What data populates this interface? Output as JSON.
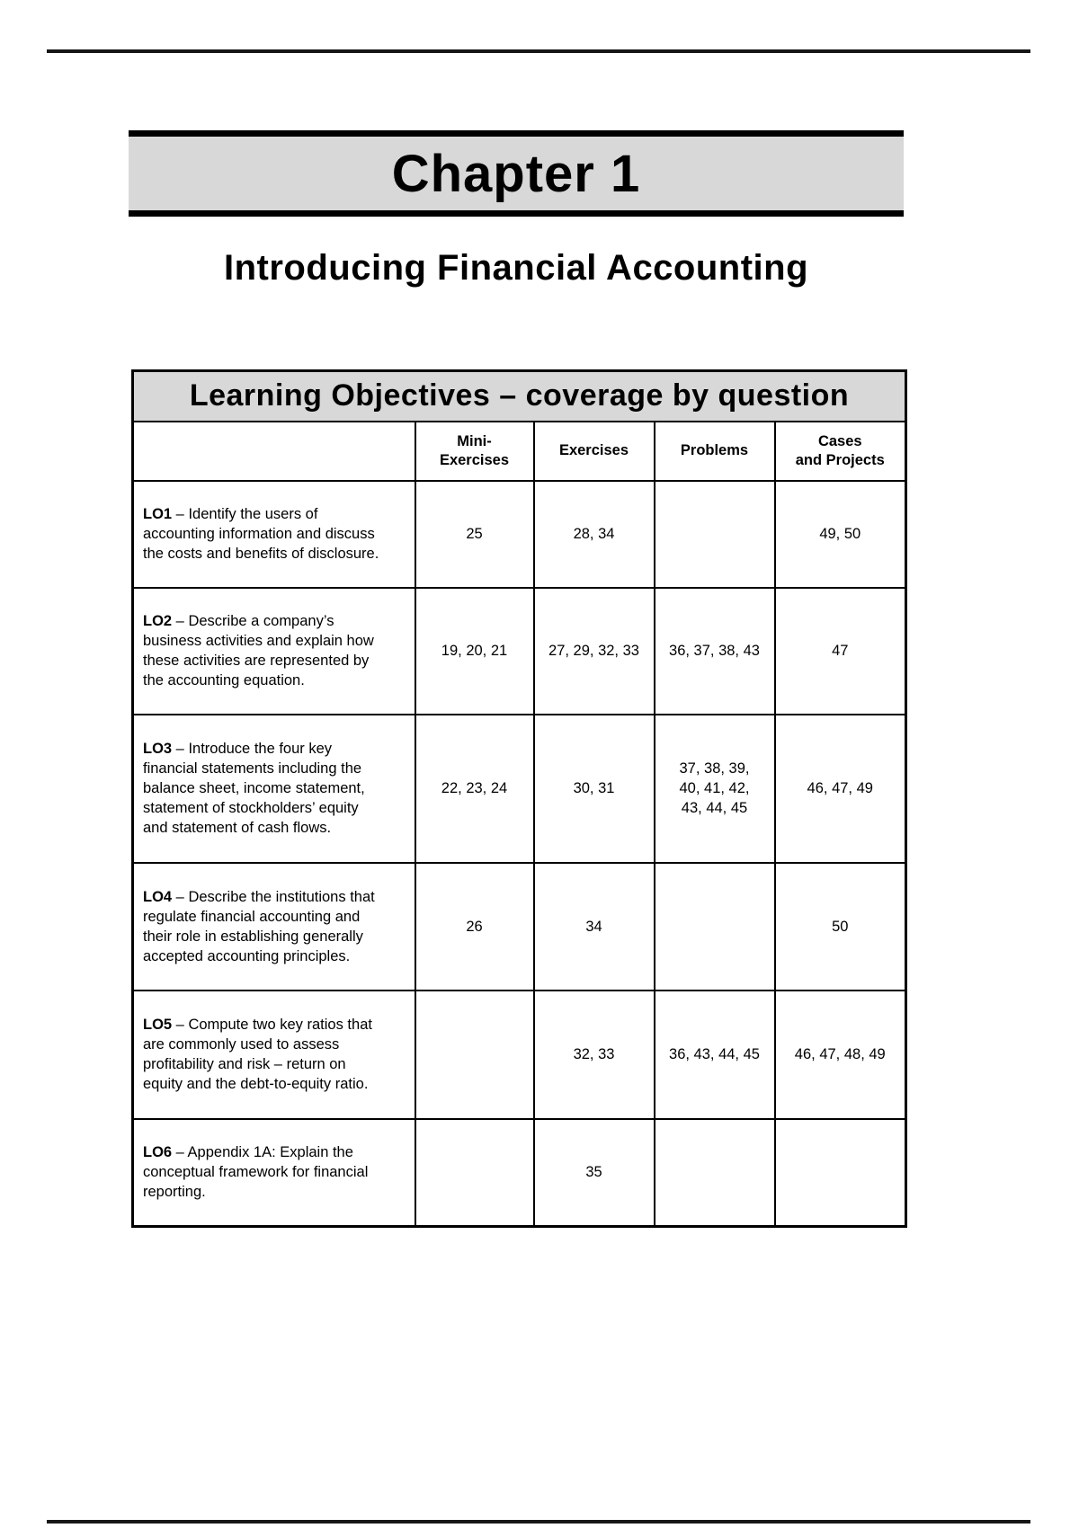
{
  "page": {
    "chapter": "Chapter 1",
    "title": "Introducing Financial Accounting"
  },
  "colors": {
    "band_background": "#d8d8d8",
    "border": "#000000",
    "text": "#000000"
  },
  "table": {
    "title": "Learning Objectives – coverage by question",
    "headers": {
      "objective": "",
      "mini": "Mini-\nExercises",
      "exercises": "Exercises",
      "problems": "Problems",
      "cases": "Cases\nand Projects"
    },
    "rows": [
      {
        "lo": "LO1",
        "text": " – Identify the users of\naccounting information and discuss\nthe costs and benefits of disclosure.",
        "mini": "25",
        "exercises": "28, 34",
        "problems": "",
        "cases": "49, 50"
      },
      {
        "lo": "LO2",
        "text": " – Describe a company’s\nbusiness activities and explain how\nthese activities are represented by\nthe accounting equation.",
        "mini": "19, 20, 21",
        "exercises": "27, 29, 32, 33",
        "problems": "36, 37, 38, 43",
        "cases": "47"
      },
      {
        "lo": "LO3",
        "text": " – Introduce the four key\nfinancial statements including the\nbalance sheet, income statement,\nstatement of stockholders’ equity\nand statement of cash flows.",
        "mini": "22, 23, 24",
        "exercises": "30, 31",
        "problems": "37, 38, 39,\n40, 41, 42,\n43, 44, 45",
        "cases": "46, 47, 49"
      },
      {
        "lo": "LO4",
        "text": " – Describe the institutions that\nregulate financial accounting and\ntheir role in establishing generally\naccepted accounting principles.",
        "mini": "26",
        "exercises": "34",
        "problems": "",
        "cases": "50"
      },
      {
        "lo": "LO5",
        "text": " – Compute two key ratios that\nare commonly used to assess\nprofitability and risk – return on\nequity and the debt-to-equity ratio.",
        "mini": "",
        "exercises": "32, 33",
        "problems": "36, 43, 44, 45",
        "cases": "46, 47, 48, 49"
      },
      {
        "lo": "LO6",
        "text": " – Appendix 1A:  Explain the\nconceptual framework for financial\nreporting.",
        "mini": "",
        "exercises": "35",
        "problems": "",
        "cases": ""
      }
    ]
  }
}
